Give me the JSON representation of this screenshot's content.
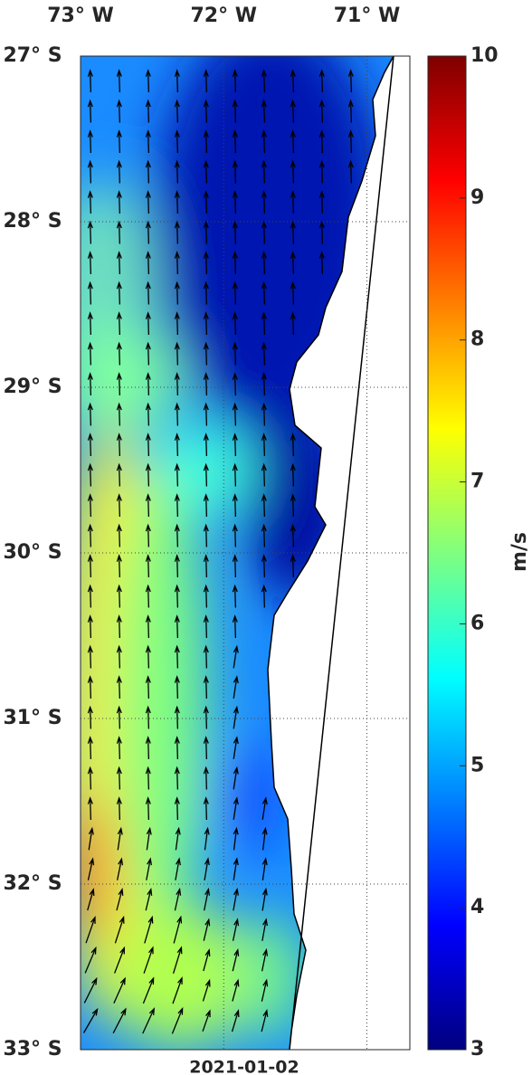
{
  "map": {
    "lon_lim": [
      -73,
      -70.7
    ],
    "lat_lim": [
      -33,
      -27
    ],
    "lon_ticks": [
      {
        "value": -73,
        "label": "73° W"
      },
      {
        "value": -72,
        "label": "72° W"
      },
      {
        "value": -71,
        "label": "71° W"
      }
    ],
    "lat_ticks": [
      {
        "value": -27,
        "label": "27° S"
      },
      {
        "value": -28,
        "label": "28° S"
      },
      {
        "value": -29,
        "label": "29° S"
      },
      {
        "value": -30,
        "label": "30° S"
      },
      {
        "value": -31,
        "label": "31° S"
      },
      {
        "value": -32,
        "label": "32° S"
      },
      {
        "value": -33,
        "label": "33° S"
      }
    ],
    "date": "2021-01-02"
  },
  "colorbar": {
    "label": "m/s",
    "lim": [
      3,
      10
    ],
    "ticks": [
      3,
      4,
      5,
      6,
      7,
      8,
      9,
      10
    ]
  }
}
